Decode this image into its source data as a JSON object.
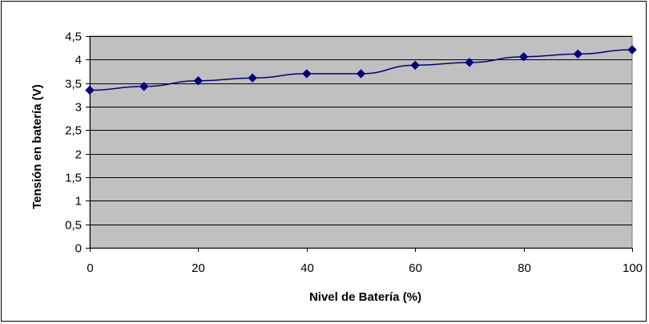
{
  "chart_data": {
    "type": "line",
    "title": "",
    "xlabel": "Nivel de Batería (%)",
    "ylabel": "Tensión en batería (V)",
    "x": [
      0,
      10,
      20,
      30,
      40,
      50,
      60,
      70,
      80,
      90,
      100
    ],
    "series": [
      {
        "values": [
          3.35,
          3.43,
          3.55,
          3.61,
          3.7,
          3.7,
          3.88,
          3.94,
          4.06,
          4.12,
          4.21
        ]
      }
    ],
    "xlim": [
      0,
      100
    ],
    "ylim": [
      0,
      4.5
    ],
    "x_ticks": [
      0,
      20,
      40,
      60,
      80,
      100
    ],
    "x_tick_labels": [
      "0",
      "20",
      "40",
      "60",
      "80",
      "100"
    ],
    "y_ticks": [
      0,
      0.5,
      1,
      1.5,
      2,
      2.5,
      3,
      3.5,
      4,
      4.5
    ],
    "y_tick_labels": [
      "0",
      "0,5",
      "1",
      "1,5",
      "2",
      "2,5",
      "3",
      "3,5",
      "4",
      "4,5"
    ],
    "grid": "horizontal",
    "legend": "none",
    "colors": {
      "plot_background": "#c0c0c0",
      "series_line": "#000080",
      "marker": "#000080",
      "gridline": "#000000"
    },
    "marker_shape": "diamond"
  }
}
